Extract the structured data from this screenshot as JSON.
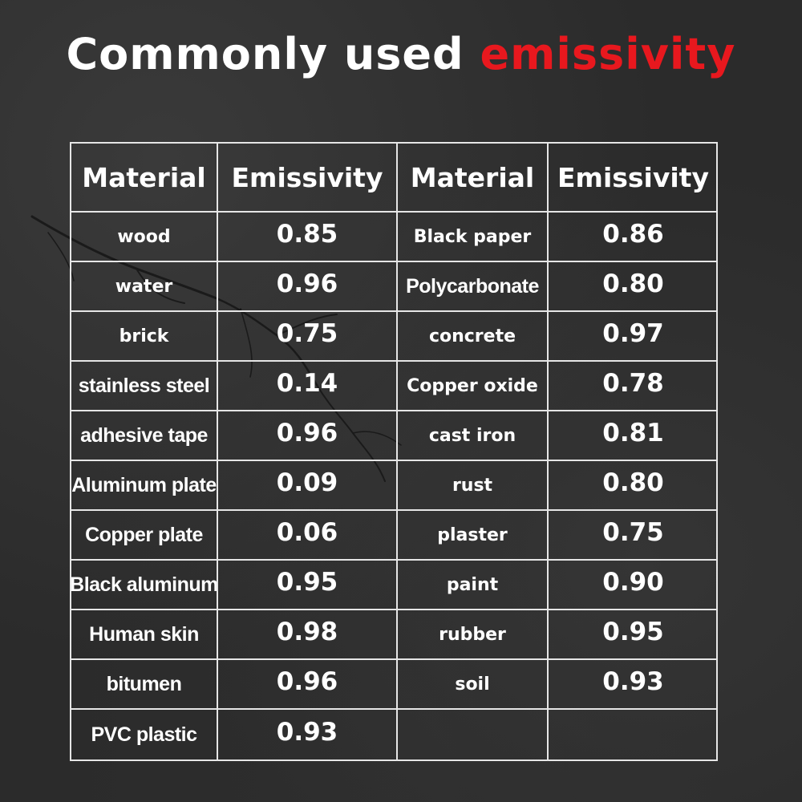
{
  "title": {
    "main": "Commonly used",
    "accent": "emissivity",
    "accent_color": "#e8181e"
  },
  "table": {
    "headers": [
      "Material",
      "Emissivity",
      "Material",
      "Emissivity"
    ],
    "left": [
      {
        "material": "wood",
        "emissivity": "0.85"
      },
      {
        "material": "water",
        "emissivity": "0.96"
      },
      {
        "material": "brick",
        "emissivity": "0.75"
      },
      {
        "material": "stainless steel",
        "emissivity": "0.14"
      },
      {
        "material": "adhesive tape",
        "emissivity": "0.96"
      },
      {
        "material": "Aluminum plate",
        "emissivity": "0.09"
      },
      {
        "material": "Copper plate",
        "emissivity": "0.06"
      },
      {
        "material": "Black aluminum",
        "emissivity": "0.95"
      },
      {
        "material": "Human skin",
        "emissivity": "0.98"
      },
      {
        "material": "bitumen",
        "emissivity": "0.96"
      },
      {
        "material": "PVC plastic",
        "emissivity": "0.93"
      }
    ],
    "right": [
      {
        "material": "Black paper",
        "emissivity": "0.86"
      },
      {
        "material": "Polycarbonate",
        "emissivity": "0.80"
      },
      {
        "material": "concrete",
        "emissivity": "0.97"
      },
      {
        "material": "Copper oxide",
        "emissivity": "0.78"
      },
      {
        "material": "cast iron",
        "emissivity": "0.81"
      },
      {
        "material": "rust",
        "emissivity": "0.80"
      },
      {
        "material": "plaster",
        "emissivity": "0.75"
      },
      {
        "material": "paint",
        "emissivity": "0.90"
      },
      {
        "material": "rubber",
        "emissivity": "0.95"
      },
      {
        "material": "soil",
        "emissivity": "0.93"
      },
      {
        "material": "",
        "emissivity": ""
      }
    ]
  }
}
